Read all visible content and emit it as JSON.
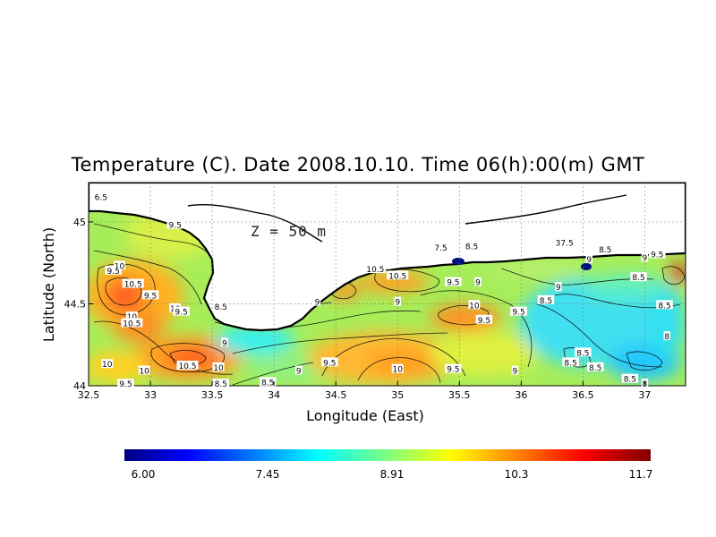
{
  "title": "Temperature (C). Date 2008.10.10. Time 06(h):00(m) GMT",
  "depth_label": "Z = 50 m",
  "axes": {
    "x_label": "Longitude (East)",
    "y_label": "Latitude (North)",
    "x_ticks": [
      "32.5",
      "33",
      "33.5",
      "34",
      "34.5",
      "35",
      "35.5",
      "36",
      "36.5",
      "37"
    ],
    "y_ticks": [
      "44",
      "44.5",
      "45"
    ]
  },
  "colorbar": {
    "labels": [
      "6.00",
      "7.45",
      "8.91",
      "10.3",
      "11.7"
    ],
    "colors": [
      "#000080",
      "#0000ff",
      "#0080ff",
      "#00ffff",
      "#80ff80",
      "#ffff00",
      "#ff8000",
      "#ff0000",
      "#800000"
    ]
  },
  "contour_labels": [
    {
      "text": "6.5",
      "lon": 32.6,
      "lat": 45.15
    },
    {
      "text": "9.5",
      "lon": 32.7,
      "lat": 44.7
    },
    {
      "text": "9.5",
      "lon": 33.2,
      "lat": 44.98
    },
    {
      "text": "10",
      "lon": 32.75,
      "lat": 44.73
    },
    {
      "text": "10.5",
      "lon": 32.86,
      "lat": 44.62
    },
    {
      "text": "9.5",
      "lon": 33.0,
      "lat": 44.55
    },
    {
      "text": "10",
      "lon": 33.2,
      "lat": 44.47
    },
    {
      "text": "9.5",
      "lon": 33.25,
      "lat": 44.45
    },
    {
      "text": "10",
      "lon": 32.85,
      "lat": 44.42
    },
    {
      "text": "10.5",
      "lon": 32.85,
      "lat": 44.38
    },
    {
      "text": "10",
      "lon": 32.65,
      "lat": 44.13
    },
    {
      "text": "10",
      "lon": 32.95,
      "lat": 44.09
    },
    {
      "text": "10.5",
      "lon": 33.3,
      "lat": 44.12
    },
    {
      "text": "10",
      "lon": 33.55,
      "lat": 44.11
    },
    {
      "text": "9.5",
      "lon": 32.8,
      "lat": 44.01
    },
    {
      "text": "8.5",
      "lon": 33.57,
      "lat": 44.01
    },
    {
      "text": "8.5",
      "lon": 33.57,
      "lat": 44.48
    },
    {
      "text": "9",
      "lon": 33.6,
      "lat": 44.26
    },
    {
      "text": "8.5",
      "lon": 33.95,
      "lat": 44.02
    },
    {
      "text": "9",
      "lon": 34.2,
      "lat": 44.09
    },
    {
      "text": "9.5",
      "lon": 34.45,
      "lat": 44.14
    },
    {
      "text": "9",
      "lon": 34.35,
      "lat": 44.51
    },
    {
      "text": "10.5",
      "lon": 34.82,
      "lat": 44.71
    },
    {
      "text": "10.5",
      "lon": 35.0,
      "lat": 44.67
    },
    {
      "text": "9",
      "lon": 35.0,
      "lat": 44.51
    },
    {
      "text": "10",
      "lon": 35.0,
      "lat": 44.1
    },
    {
      "text": "7.5",
      "lon": 35.35,
      "lat": 44.84
    },
    {
      "text": "8.5",
      "lon": 35.6,
      "lat": 44.85
    },
    {
      "text": "9.5",
      "lon": 35.45,
      "lat": 44.63
    },
    {
      "text": "9",
      "lon": 35.65,
      "lat": 44.63
    },
    {
      "text": "10",
      "lon": 35.62,
      "lat": 44.49
    },
    {
      "text": "9.5",
      "lon": 35.7,
      "lat": 44.4
    },
    {
      "text": "9.5",
      "lon": 35.98,
      "lat": 44.45
    },
    {
      "text": "9.5",
      "lon": 35.45,
      "lat": 44.1
    },
    {
      "text": "9",
      "lon": 35.95,
      "lat": 44.09
    },
    {
      "text": "8.5",
      "lon": 36.2,
      "lat": 44.52
    },
    {
      "text": "9",
      "lon": 36.3,
      "lat": 44.6
    },
    {
      "text": "37.5",
      "lon": 36.35,
      "lat": 44.87
    },
    {
      "text": "8.5",
      "lon": 36.68,
      "lat": 44.83
    },
    {
      "text": "9",
      "lon": 36.55,
      "lat": 44.77
    },
    {
      "text": "8.5",
      "lon": 36.95,
      "lat": 44.66
    },
    {
      "text": "8.5",
      "lon": 36.5,
      "lat": 44.2
    },
    {
      "text": "8.5",
      "lon": 36.4,
      "lat": 44.14
    },
    {
      "text": "8.5",
      "lon": 36.6,
      "lat": 44.11
    },
    {
      "text": "8.5",
      "lon": 36.88,
      "lat": 44.04
    },
    {
      "text": "9.5",
      "lon": 37.1,
      "lat": 44.8
    },
    {
      "text": "9",
      "lon": 37.0,
      "lat": 44.78
    },
    {
      "text": "8.5",
      "lon": 37.16,
      "lat": 44.49
    },
    {
      "text": "8",
      "lon": 37.18,
      "lat": 44.3
    },
    {
      "text": "8",
      "lon": 37.0,
      "lat": 44.01
    }
  ]
}
